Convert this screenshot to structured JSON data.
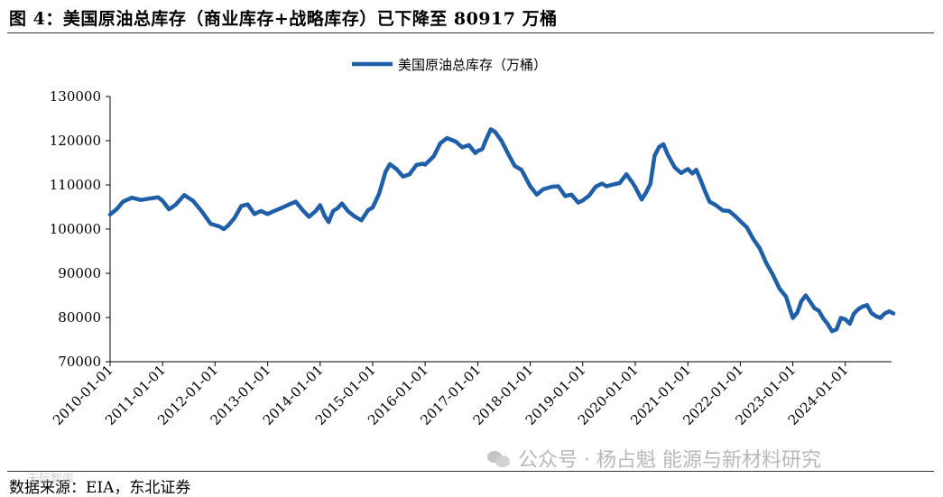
{
  "header": {
    "title": "图 4：美国原油总库存（商业库存+战略库存）已下降至 80917 万桶"
  },
  "footer": {
    "source": "数据来源：EIA，东北证券",
    "watermark": "公众号 · 杨占魁 能源与新材料研究",
    "watermark_small": "天际智库"
  },
  "chart_data": {
    "type": "line",
    "title": "",
    "xlabel": "",
    "ylabel": "",
    "ylim": [
      70000,
      130000
    ],
    "yticks": [
      70000,
      80000,
      90000,
      100000,
      110000,
      120000,
      130000
    ],
    "xticks": [
      "2010-01-01",
      "2011-01-01",
      "2012-01-01",
      "2013-01-01",
      "2014-01-01",
      "2015-01-01",
      "2016-01-01",
      "2017-01-01",
      "2018-01-01",
      "2019-01-01",
      "2020-01-01",
      "2021-01-01",
      "2022-01-01",
      "2023-01-01",
      "2024-01-01"
    ],
    "legend_position": "top-center",
    "line_color": "#1f5fa8",
    "series": [
      {
        "name": "美国原油总库存（万桶）",
        "points": [
          [
            "2010-01-01",
            103300
          ],
          [
            "2010-02-15",
            104500
          ],
          [
            "2010-04-01",
            106200
          ],
          [
            "2010-06-01",
            107100
          ],
          [
            "2010-08-01",
            106600
          ],
          [
            "2010-10-01",
            106900
          ],
          [
            "2010-12-01",
            107200
          ],
          [
            "2011-01-01",
            106400
          ],
          [
            "2011-02-15",
            104500
          ],
          [
            "2011-04-01",
            105500
          ],
          [
            "2011-06-01",
            107700
          ],
          [
            "2011-08-01",
            106400
          ],
          [
            "2011-10-01",
            104000
          ],
          [
            "2011-12-01",
            101200
          ],
          [
            "2012-02-01",
            100600
          ],
          [
            "2012-03-01",
            100000
          ],
          [
            "2012-04-01",
            100800
          ],
          [
            "2012-05-15",
            102500
          ],
          [
            "2012-07-01",
            105200
          ],
          [
            "2012-08-15",
            105600
          ],
          [
            "2012-10-01",
            103400
          ],
          [
            "2012-11-15",
            104100
          ],
          [
            "2013-01-01",
            103400
          ],
          [
            "2013-02-15",
            104100
          ],
          [
            "2013-04-01",
            104700
          ],
          [
            "2013-06-01",
            105600
          ],
          [
            "2013-07-15",
            106200
          ],
          [
            "2013-09-01",
            104300
          ],
          [
            "2013-10-15",
            102800
          ],
          [
            "2013-12-01",
            104100
          ],
          [
            "2014-01-01",
            105400
          ],
          [
            "2014-02-01",
            103000
          ],
          [
            "2014-03-01",
            101600
          ],
          [
            "2014-04-01",
            104100
          ],
          [
            "2014-05-01",
            104700
          ],
          [
            "2014-06-01",
            105800
          ],
          [
            "2014-07-15",
            104000
          ],
          [
            "2014-09-01",
            102800
          ],
          [
            "2014-10-15",
            102000
          ],
          [
            "2014-12-01",
            104300
          ],
          [
            "2015-01-01",
            104900
          ],
          [
            "2015-02-15",
            108000
          ],
          [
            "2015-04-01",
            113000
          ],
          [
            "2015-05-01",
            114700
          ],
          [
            "2015-06-15",
            113600
          ],
          [
            "2015-08-01",
            111900
          ],
          [
            "2015-09-15",
            112400
          ],
          [
            "2015-11-01",
            114500
          ],
          [
            "2015-12-15",
            114800
          ],
          [
            "2016-01-01",
            114600
          ],
          [
            "2016-03-01",
            116500
          ],
          [
            "2016-04-15",
            119400
          ],
          [
            "2016-06-01",
            120600
          ],
          [
            "2016-08-01",
            119800
          ],
          [
            "2016-09-15",
            118500
          ],
          [
            "2016-11-01",
            119000
          ],
          [
            "2016-12-15",
            117200
          ],
          [
            "2017-01-01",
            117700
          ],
          [
            "2017-02-01",
            118100
          ],
          [
            "2017-03-01",
            120300
          ],
          [
            "2017-04-01",
            122600
          ],
          [
            "2017-05-01",
            122000
          ],
          [
            "2017-06-15",
            120000
          ],
          [
            "2017-08-01",
            117000
          ],
          [
            "2017-09-15",
            114300
          ],
          [
            "2017-11-01",
            113400
          ],
          [
            "2017-12-15",
            110700
          ],
          [
            "2018-01-01",
            109700
          ],
          [
            "2018-02-15",
            107800
          ],
          [
            "2018-04-01",
            109000
          ],
          [
            "2018-06-01",
            109600
          ],
          [
            "2018-07-15",
            109700
          ],
          [
            "2018-09-01",
            107500
          ],
          [
            "2018-10-15",
            107800
          ],
          [
            "2018-12-01",
            106000
          ],
          [
            "2019-01-01",
            106500
          ],
          [
            "2019-02-15",
            107600
          ],
          [
            "2019-04-01",
            109600
          ],
          [
            "2019-05-15",
            110300
          ],
          [
            "2019-06-15",
            109700
          ],
          [
            "2019-08-01",
            110100
          ],
          [
            "2019-09-15",
            110400
          ],
          [
            "2019-11-01",
            112400
          ],
          [
            "2019-12-15",
            110400
          ],
          [
            "2020-01-01",
            109500
          ],
          [
            "2020-02-15",
            106700
          ],
          [
            "2020-03-15",
            108200
          ],
          [
            "2020-04-15",
            110200
          ],
          [
            "2020-05-15",
            116600
          ],
          [
            "2020-06-15",
            118600
          ],
          [
            "2020-07-15",
            119200
          ],
          [
            "2020-08-15",
            116800
          ],
          [
            "2020-10-01",
            114000
          ],
          [
            "2020-11-15",
            112700
          ],
          [
            "2021-01-01",
            113600
          ],
          [
            "2021-02-01",
            112600
          ],
          [
            "2021-03-01",
            113400
          ],
          [
            "2021-04-01",
            111000
          ],
          [
            "2021-05-01",
            108500
          ],
          [
            "2021-06-01",
            106200
          ],
          [
            "2021-07-15",
            105400
          ],
          [
            "2021-09-01",
            104200
          ],
          [
            "2021-10-15",
            104100
          ],
          [
            "2021-12-01",
            102800
          ],
          [
            "2022-01-01",
            101800
          ],
          [
            "2022-02-15",
            100400
          ],
          [
            "2022-04-01",
            97800
          ],
          [
            "2022-05-15",
            95700
          ],
          [
            "2022-07-01",
            92300
          ],
          [
            "2022-08-15",
            89700
          ],
          [
            "2022-10-01",
            86500
          ],
          [
            "2022-11-15",
            84700
          ],
          [
            "2022-12-15",
            81600
          ],
          [
            "2023-01-01",
            79900
          ],
          [
            "2023-02-01",
            81100
          ],
          [
            "2023-03-01",
            83700
          ],
          [
            "2023-04-01",
            85000
          ],
          [
            "2023-05-01",
            83600
          ],
          [
            "2023-06-01",
            82100
          ],
          [
            "2023-07-01",
            81500
          ],
          [
            "2023-08-01",
            79800
          ],
          [
            "2023-09-01",
            78500
          ],
          [
            "2023-10-01",
            76900
          ],
          [
            "2023-11-01",
            77300
          ],
          [
            "2023-12-01",
            79900
          ],
          [
            "2024-01-01",
            79600
          ],
          [
            "2024-02-01",
            78600
          ],
          [
            "2024-03-01",
            80900
          ],
          [
            "2024-04-01",
            81900
          ],
          [
            "2024-05-01",
            82500
          ],
          [
            "2024-06-01",
            82800
          ],
          [
            "2024-07-01",
            81000
          ],
          [
            "2024-08-01",
            80300
          ],
          [
            "2024-09-01",
            79900
          ],
          [
            "2024-10-01",
            80900
          ],
          [
            "2024-11-01",
            81400
          ],
          [
            "2024-12-01",
            80917
          ]
        ]
      }
    ]
  }
}
